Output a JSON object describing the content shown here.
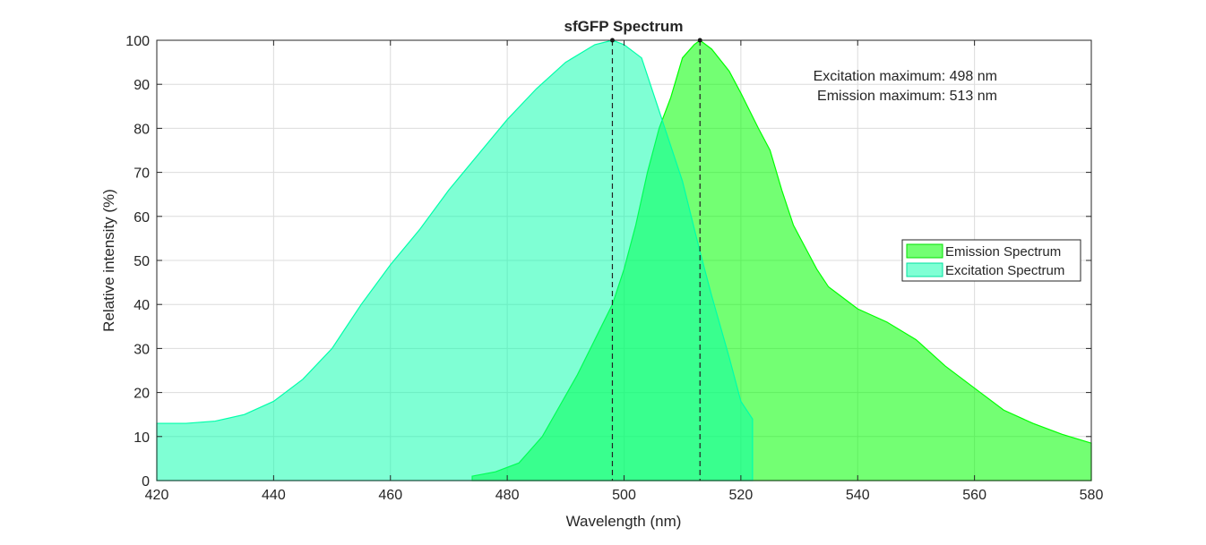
{
  "chart_data": {
    "type": "area",
    "title": "sfGFP Spectrum",
    "xlabel": "Wavelength (nm)",
    "ylabel": "Relative intensity (%)",
    "xlim": [
      420,
      580
    ],
    "ylim": [
      0,
      100
    ],
    "xticks": [
      420,
      440,
      460,
      480,
      500,
      520,
      540,
      560,
      580
    ],
    "yticks": [
      0,
      10,
      20,
      30,
      40,
      50,
      60,
      70,
      80,
      90,
      100
    ],
    "grid": true,
    "legend_placement": "right",
    "annotations": [
      "Excitation maximum: 498 nm",
      "Emission maximum: 513 nm"
    ],
    "excitation_max": 498,
    "emission_max": 513,
    "series": [
      {
        "name": "Emission Spectrum",
        "color": "#00ff00",
        "x": [
          474,
          478,
          482,
          486,
          489,
          492,
          495,
          498,
          500,
          502,
          504,
          506,
          508,
          510,
          512,
          513,
          515,
          518,
          520,
          523,
          525,
          527,
          529,
          531,
          533,
          535,
          538,
          540,
          545,
          550,
          555,
          560,
          565,
          570,
          575,
          580
        ],
        "y": [
          1,
          2,
          4,
          10,
          17,
          24,
          32,
          40,
          48,
          58,
          70,
          80,
          87,
          96,
          99,
          100,
          98,
          93,
          88,
          80,
          75,
          66,
          58,
          53,
          48,
          44,
          41,
          39,
          36,
          32,
          26,
          21,
          16,
          13,
          10.5,
          8.5
        ]
      },
      {
        "name": "Excitation Spectrum",
        "color": "#00ffaa",
        "x": [
          420,
          425,
          430,
          435,
          440,
          445,
          450,
          455,
          460,
          465,
          470,
          475,
          480,
          485,
          490,
          495,
          498,
          500,
          503,
          505,
          507,
          510,
          513,
          515,
          518,
          520,
          522
        ],
        "y": [
          13,
          13,
          13.5,
          15,
          18,
          23,
          30,
          40,
          49,
          57,
          66,
          74,
          82,
          89,
          95,
          99,
          100,
          99,
          96,
          88,
          80,
          68,
          52,
          42,
          28,
          18,
          14
        ]
      }
    ]
  }
}
